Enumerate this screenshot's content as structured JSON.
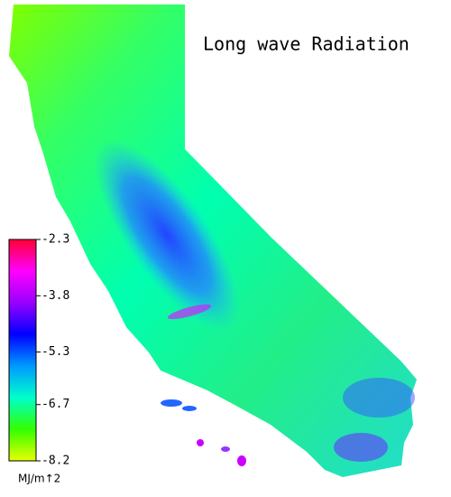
{
  "title": "Long wave Radiation",
  "colorbar": {
    "range": [
      -8.2,
      -2.3
    ],
    "ticks": [
      -2.3,
      -3.8,
      -5.3,
      -6.7,
      -8.2
    ],
    "colors": [
      "#e6ff00",
      "#33ff00",
      "#00ffcc",
      "#0099ff",
      "#0000ff",
      "#9900ff",
      "#ff00ff",
      "#ff0033"
    ],
    "unit": "MJ/m↑2"
  }
}
